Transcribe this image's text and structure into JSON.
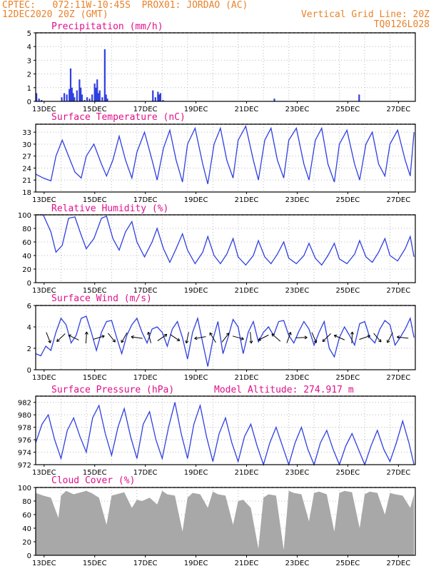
{
  "header": {
    "line1": "CPTEC:   072:11W-10:45S  PROX01: JORDAO (AC)",
    "date": "12DEC2020 20Z (GMT)",
    "vgrid": "Vertical Grid Line: 20Z",
    "code": "TQ0126L028"
  },
  "colors": {
    "line": "#2f3fe0",
    "title": "#e0108a",
    "header": "#e8822a",
    "cloud": "#a8a8a8"
  },
  "chart_data": [
    {
      "type": "bar",
      "title": "Precipitation (mm/h)",
      "ylim": [
        0,
        5
      ],
      "yticks": [
        0,
        1,
        2,
        3,
        4,
        5
      ],
      "xticks": [
        "13DEC",
        "15DEC",
        "17DEC",
        "19DEC",
        "21DEC",
        "23DEC",
        "25DEC",
        "27DEC"
      ],
      "x_days": [
        0.0,
        0.1,
        0.2,
        1.0,
        1.1,
        1.2,
        1.3,
        1.35,
        1.4,
        1.45,
        1.5,
        1.6,
        1.7,
        1.75,
        1.8,
        1.9,
        2.0,
        2.1,
        2.2,
        2.3,
        2.35,
        2.4,
        2.45,
        2.5,
        2.6,
        2.7,
        2.75,
        2.8,
        4.6,
        4.7,
        4.8,
        4.85,
        4.9,
        5.0,
        9.4,
        12.75
      ],
      "values": [
        0.6,
        0.2,
        0.1,
        0.3,
        0.6,
        0.5,
        0.9,
        2.4,
        1.0,
        0.6,
        0.3,
        0.8,
        1.6,
        1.0,
        0.5,
        0.1,
        0.3,
        0.2,
        0.5,
        1.3,
        1.0,
        1.6,
        0.6,
        0.8,
        0.3,
        3.8,
        0.5,
        0.2,
        0.8,
        0.3,
        0.7,
        0.5,
        0.6,
        0.1,
        0.2,
        0.5
      ]
    },
    {
      "type": "line",
      "title": "Surface Temperature (nC)",
      "ylim": [
        18,
        35
      ],
      "yticks": [
        18,
        21,
        24,
        27,
        30,
        33
      ],
      "xticks": [
        "13DEC",
        "15DEC",
        "17DEC",
        "19DEC",
        "21DEC",
        "23DEC",
        "25DEC",
        "27DEC"
      ],
      "x_days": [
        0,
        0.3,
        0.6,
        0.8,
        1.05,
        1.3,
        1.55,
        1.8,
        2.0,
        2.3,
        2.6,
        2.8,
        3.05,
        3.3,
        3.55,
        3.8,
        4.0,
        4.3,
        4.6,
        4.8,
        5.05,
        5.3,
        5.55,
        5.8,
        6.0,
        6.3,
        6.6,
        6.8,
        7.05,
        7.3,
        7.55,
        7.8,
        8.0,
        8.3,
        8.6,
        8.8,
        9.05,
        9.3,
        9.55,
        9.8,
        10.0,
        10.3,
        10.6,
        10.8,
        11.05,
        11.3,
        11.55,
        11.8,
        12.0,
        12.3,
        12.6,
        12.8,
        13.05,
        13.3,
        13.55,
        13.8,
        14.0,
        14.3,
        14.6,
        14.8,
        14.95
      ],
      "values": [
        22.5,
        21.5,
        20.8,
        27,
        31,
        27,
        23,
        21.5,
        27,
        30,
        25,
        22,
        26,
        32,
        26,
        21.5,
        28,
        33,
        26,
        21,
        29,
        33.5,
        26,
        20.5,
        30,
        34,
        25,
        20,
        30,
        34,
        26,
        21.5,
        31,
        34.5,
        26,
        21,
        31,
        34,
        26,
        21.5,
        31,
        34,
        25,
        21,
        31,
        34,
        25,
        20.5,
        30,
        33.5,
        25,
        21,
        30,
        33,
        25,
        22,
        30,
        33.5,
        26,
        22,
        33
      ]
    },
    {
      "type": "line",
      "title": "Relative Humidity (%)",
      "ylim": [
        0,
        100
      ],
      "yticks": [
        0,
        20,
        40,
        60,
        80,
        100
      ],
      "xticks": [
        "13DEC",
        "15DEC",
        "17DEC",
        "19DEC",
        "21DEC",
        "23DEC",
        "25DEC",
        "27DEC"
      ],
      "x_days": [
        0,
        0.3,
        0.6,
        0.8,
        1.05,
        1.3,
        1.55,
        1.8,
        2.0,
        2.3,
        2.6,
        2.8,
        3.05,
        3.3,
        3.55,
        3.8,
        4.0,
        4.3,
        4.6,
        4.8,
        5.05,
        5.3,
        5.55,
        5.8,
        6.0,
        6.3,
        6.6,
        6.8,
        7.05,
        7.3,
        7.55,
        7.8,
        8.0,
        8.3,
        8.6,
        8.8,
        9.05,
        9.3,
        9.55,
        9.8,
        10.0,
        10.3,
        10.6,
        10.8,
        11.05,
        11.3,
        11.55,
        11.8,
        12.0,
        12.3,
        12.6,
        12.8,
        13.05,
        13.3,
        13.55,
        13.8,
        14.0,
        14.3,
        14.6,
        14.8,
        14.95
      ],
      "values": [
        100,
        100,
        75,
        45,
        55,
        95,
        97,
        70,
        50,
        65,
        95,
        98,
        65,
        48,
        75,
        90,
        60,
        38,
        60,
        80,
        50,
        30,
        50,
        72,
        48,
        28,
        45,
        68,
        40,
        28,
        42,
        65,
        38,
        26,
        40,
        62,
        38,
        28,
        42,
        60,
        36,
        28,
        40,
        58,
        36,
        26,
        40,
        58,
        35,
        28,
        42,
        62,
        38,
        30,
        45,
        65,
        40,
        32,
        50,
        68,
        38
      ]
    },
    {
      "type": "line",
      "title": "Surface Wind (m/s)",
      "ylim": [
        0,
        6
      ],
      "yticks": [
        0,
        2,
        4,
        6
      ],
      "xticks": [
        "13DEC",
        "15DEC",
        "17DEC",
        "19DEC",
        "21DEC",
        "23DEC",
        "25DEC",
        "27DEC"
      ],
      "x_days": [
        0,
        0.2,
        0.4,
        0.6,
        0.8,
        1.0,
        1.2,
        1.4,
        1.6,
        1.8,
        2.0,
        2.2,
        2.4,
        2.6,
        2.8,
        3.0,
        3.2,
        3.4,
        3.6,
        3.8,
        4.0,
        4.2,
        4.4,
        4.6,
        4.8,
        5.0,
        5.2,
        5.4,
        5.6,
        5.8,
        6.0,
        6.2,
        6.4,
        6.6,
        6.8,
        7.0,
        7.2,
        7.4,
        7.6,
        7.8,
        8.0,
        8.2,
        8.4,
        8.6,
        8.8,
        9.0,
        9.2,
        9.4,
        9.6,
        9.8,
        10.0,
        10.2,
        10.4,
        10.6,
        10.8,
        11.0,
        11.2,
        11.4,
        11.6,
        11.8,
        12.0,
        12.2,
        12.4,
        12.6,
        12.8,
        13.0,
        13.2,
        13.4,
        13.6,
        13.8,
        14.0,
        14.2,
        14.4,
        14.6,
        14.8,
        14.95
      ],
      "values": [
        1.5,
        1.3,
        2.2,
        1.8,
        3.5,
        4.8,
        4.2,
        2.5,
        3.2,
        4.8,
        5.0,
        3.5,
        1.8,
        3.5,
        4.5,
        4.6,
        3.0,
        1.5,
        3.2,
        4.2,
        4.8,
        3.5,
        2.5,
        3.8,
        4.0,
        3.5,
        2.2,
        3.8,
        4.5,
        3.0,
        1.0,
        3.5,
        4.8,
        2.5,
        0.3,
        2.8,
        4.5,
        1.5,
        3.0,
        4.7,
        4.0,
        1.5,
        3.5,
        4.5,
        2.6,
        3.5,
        4.0,
        3.2,
        4.5,
        4.6,
        3.2,
        2.5,
        3.6,
        4.5,
        3.8,
        2.3,
        3.5,
        4.5,
        2.0,
        1.2,
        3.0,
        4.0,
        3.2,
        2.3,
        4.3,
        4.5,
        3.0,
        2.5,
        3.8,
        4.6,
        4.2,
        2.3,
        3.0,
        3.8,
        4.8,
        3.0
      ]
    },
    {
      "type": "line",
      "title": "Surface Pressure (hPa)",
      "annotation": "Model Altitude: 274.917 m",
      "ylim": [
        972,
        983
      ],
      "yticks": [
        972,
        974,
        976,
        978,
        980,
        982
      ],
      "xticks": [
        "13DEC",
        "15DEC",
        "17DEC",
        "19DEC",
        "21DEC",
        "23DEC",
        "25DEC",
        "27DEC"
      ],
      "x_days": [
        0,
        0.25,
        0.5,
        0.75,
        1.0,
        1.25,
        1.5,
        1.75,
        2.0,
        2.25,
        2.5,
        2.75,
        3.0,
        3.25,
        3.5,
        3.75,
        4.0,
        4.25,
        4.5,
        4.75,
        5.0,
        5.25,
        5.5,
        5.75,
        6.0,
        6.25,
        6.5,
        6.75,
        7.0,
        7.25,
        7.5,
        7.75,
        8.0,
        8.25,
        8.5,
        8.75,
        9.0,
        9.25,
        9.5,
        9.75,
        10.0,
        10.25,
        10.5,
        10.75,
        11.0,
        11.25,
        11.5,
        11.75,
        12.0,
        12.25,
        12.5,
        12.75,
        13.0,
        13.25,
        13.5,
        13.75,
        14.0,
        14.25,
        14.5,
        14.75,
        14.95
      ],
      "values": [
        975.5,
        978.5,
        980,
        976,
        973,
        977.5,
        979.5,
        976.5,
        974,
        979.5,
        981.5,
        977,
        973.5,
        978,
        981,
        976.5,
        973,
        978.5,
        980.5,
        976,
        973,
        978,
        982,
        977,
        973,
        978.5,
        981.5,
        976.5,
        972.5,
        977,
        979.5,
        975.5,
        972.5,
        976.5,
        978.5,
        975,
        972,
        975.5,
        978,
        975,
        972,
        975.5,
        978,
        974.5,
        972,
        975.5,
        977.5,
        974.5,
        972,
        975,
        977,
        974.5,
        972,
        975,
        977.5,
        974.5,
        972.5,
        975.5,
        979,
        975.5,
        972
      ]
    },
    {
      "type": "area",
      "title": "Cloud Cover (%)",
      "ylim": [
        0,
        100
      ],
      "yticks": [
        0,
        20,
        40,
        60,
        80,
        100
      ],
      "xticks": [
        "13DEC",
        "15DEC",
        "17DEC",
        "19DEC",
        "21DEC",
        "23DEC",
        "25DEC",
        "27DEC"
      ],
      "x_days": [
        0,
        0.3,
        0.6,
        0.9,
        1.0,
        1.2,
        1.5,
        1.8,
        2.0,
        2.2,
        2.5,
        2.8,
        3.0,
        3.2,
        3.5,
        3.8,
        4.0,
        4.2,
        4.5,
        4.8,
        5.0,
        5.2,
        5.5,
        5.8,
        6.0,
        6.2,
        6.5,
        6.8,
        7.0,
        7.2,
        7.5,
        7.8,
        8.0,
        8.2,
        8.5,
        8.8,
        9.0,
        9.2,
        9.5,
        9.8,
        10.0,
        10.2,
        10.5,
        10.8,
        11.0,
        11.2,
        11.5,
        11.8,
        12.0,
        12.2,
        12.5,
        12.8,
        13.0,
        13.2,
        13.5,
        13.8,
        14.0,
        14.2,
        14.5,
        14.8,
        14.95
      ],
      "values": [
        92,
        88,
        85,
        55,
        88,
        95,
        90,
        93,
        95,
        92,
        85,
        45,
        88,
        90,
        93,
        70,
        82,
        80,
        85,
        75,
        95,
        90,
        88,
        35,
        85,
        92,
        90,
        70,
        94,
        90,
        88,
        45,
        80,
        82,
        70,
        10,
        85,
        90,
        88,
        8,
        95,
        92,
        90,
        50,
        92,
        94,
        90,
        35,
        92,
        95,
        93,
        40,
        90,
        94,
        92,
        60,
        92,
        90,
        88,
        70,
        90
      ]
    }
  ]
}
